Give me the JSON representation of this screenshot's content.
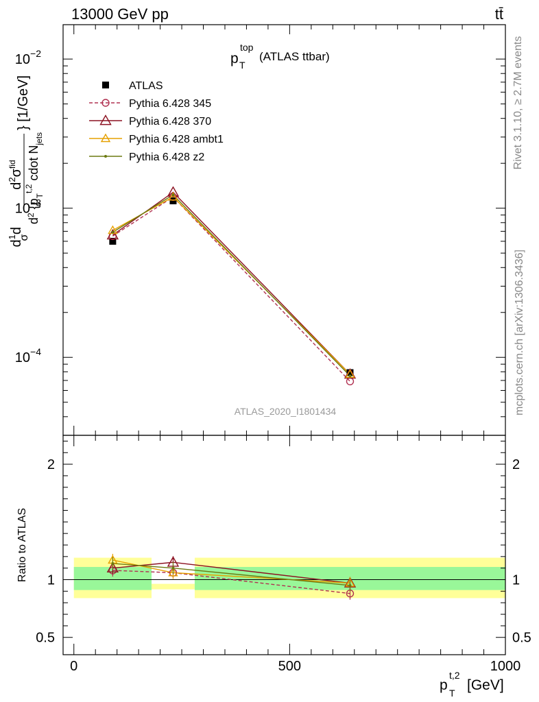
{
  "header": {
    "left": "13000 GeV pp",
    "right": "tt̄"
  },
  "side_labels": {
    "rivet": "Rivet 3.1.10, ≥ 2.7M events",
    "mcplots": "mcplots.cern.ch [arXiv:1306.3436]"
  },
  "watermark": "ATLAS_2020_I1801434",
  "colors": {
    "atlas": "#000000",
    "p345": "#b03050",
    "p370": "#8b1020",
    "ambt1": "#e6a000",
    "z2": "#6b7a10",
    "band_inner": "#99f799",
    "band_outer": "#ffff99"
  },
  "chart_data": [
    {
      "type": "line",
      "title": "p_T^top (ATLAS ttbar)",
      "title_main": "p",
      "title_sub": "T",
      "title_sup": "top",
      "title_rest": "(ATLAS ttbar)",
      "ylabel": "d 1/σ d d²σ^fid / d² {p_T^t,2 cdot N_jets} [1/GeV]",
      "ylabel_unit": "} [1/GeV]",
      "yscale": "log",
      "ylim": [
        3e-05,
        0.017
      ],
      "xlim": [
        -25,
        1000
      ],
      "yticks": [
        {
          "value": 0.01,
          "base": "10",
          "exp": "−2"
        },
        {
          "value": 0.001,
          "base": "10",
          "exp": "−3"
        },
        {
          "value": 0.0001,
          "base": "10",
          "exp": "−4"
        }
      ],
      "legend_position": "top-left",
      "series": [
        {
          "name": "ATLAS",
          "key": "atlas",
          "marker": "square",
          "x": [
            90,
            230,
            640
          ],
          "y": [
            0.0006,
            0.00112,
            7.9e-05
          ]
        },
        {
          "name": "Pythia 6.428 345",
          "key": "p345",
          "marker": "circle",
          "dash": true,
          "x": [
            90,
            230,
            640
          ],
          "y": [
            0.00065,
            0.00119,
            6.9e-05
          ]
        },
        {
          "name": "Pythia 6.428 370",
          "key": "p370",
          "marker": "triangle",
          "x": [
            90,
            230,
            640
          ],
          "y": [
            0.00066,
            0.00128,
            7.7e-05
          ]
        },
        {
          "name": "Pythia 6.428 ambt1",
          "key": "ambt1",
          "marker": "triangle",
          "x": [
            90,
            230,
            640
          ],
          "y": [
            0.00071,
            0.00119,
            7.7e-05
          ]
        },
        {
          "name": "Pythia 6.428 z2",
          "key": "z2",
          "marker": "dot",
          "x": [
            90,
            230,
            640
          ],
          "y": [
            0.00069,
            0.00123,
            7.5e-05
          ]
        }
      ]
    },
    {
      "type": "line",
      "ylabel": "Ratio to ATLAS",
      "xlabel": "p_T^t,2 [GeV]",
      "xlabel_main": "p",
      "xlabel_sub": "T",
      "xlabel_sup": "t,2",
      "xlabel_unit": "[GeV]",
      "xlim": [
        -25,
        1000
      ],
      "ylim": [
        0.35,
        2.25
      ],
      "yticks": [
        {
          "value": 0.5,
          "label": "0.5"
        },
        {
          "value": 1,
          "label": "1"
        },
        {
          "value": 2,
          "label": "2"
        }
      ],
      "xticks": [
        {
          "value": 0,
          "label": "0"
        },
        {
          "value": 500,
          "label": "500"
        },
        {
          "value": 1000,
          "label": "1000"
        }
      ],
      "bands": [
        {
          "x0": 0,
          "x1": 180,
          "outer": [
            0.84,
            1.19
          ],
          "inner": [
            0.91,
            1.11
          ]
        },
        {
          "x0": 180,
          "x1": 280,
          "outer": [
            0.94,
            0.94
          ],
          "inner": [
            0.94,
            0.94
          ]
        },
        {
          "x0": 280,
          "x1": 1000,
          "outer": [
            0.84,
            1.19
          ],
          "inner": [
            0.91,
            1.11
          ]
        }
      ],
      "series": [
        {
          "name": "Pythia 6.428 345",
          "key": "p345",
          "marker": "circle",
          "dash": true,
          "x": [
            90,
            230,
            640
          ],
          "y": [
            1.08,
            1.06,
            0.88
          ]
        },
        {
          "name": "Pythia 6.428 370",
          "key": "p370",
          "marker": "triangle",
          "x": [
            90,
            230,
            640
          ],
          "y": [
            1.1,
            1.15,
            0.97
          ]
        },
        {
          "name": "Pythia 6.428 ambt1",
          "key": "ambt1",
          "marker": "triangle",
          "x": [
            90,
            230,
            640
          ],
          "y": [
            1.17,
            1.06,
            0.97
          ]
        },
        {
          "name": "Pythia 6.428 z2",
          "key": "z2",
          "marker": "dot",
          "x": [
            90,
            230,
            640
          ],
          "y": [
            1.14,
            1.1,
            0.95
          ]
        }
      ]
    }
  ]
}
